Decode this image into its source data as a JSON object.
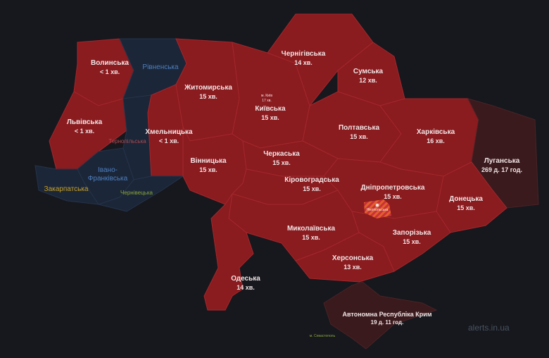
{
  "colors": {
    "background": "#16181d",
    "alert": "#8a1b1f",
    "no_alert": "#1b2638",
    "long_alert": "#3a1a1d",
    "hromada_alert": "#e2602a"
  },
  "regions": {
    "volynska": {
      "name": "Волинська",
      "time": "< 1 хв.",
      "status": "alert"
    },
    "rivnenska": {
      "name": "Рівненська",
      "status": "ok"
    },
    "lvivska": {
      "name": "Львівська",
      "time": "< 1 хв.",
      "status": "alert"
    },
    "khmelnytska": {
      "name": "Хмельницька",
      "time": "< 1 хв.",
      "status": "alert"
    },
    "ternopilska": {
      "name": "Тернопільська",
      "status": "ok"
    },
    "ivano_frankivska": {
      "name": "Івано-Франківська",
      "status": "ok"
    },
    "zakarpatska": {
      "name": "Закарпатська",
      "status": "ok"
    },
    "chernivetska": {
      "name": "Чернівецька",
      "status": "ok"
    },
    "zhytomyrska": {
      "name": "Житомирська",
      "time": "15 хв.",
      "status": "alert"
    },
    "vinnytska": {
      "name": "Вінницька",
      "time": "15 хв.",
      "status": "alert"
    },
    "kyivska": {
      "name": "Київська",
      "time": "15 хв.",
      "status": "alert"
    },
    "kyiv_city": {
      "name": "м. Київ",
      "time": "17 хв.",
      "status": "alert"
    },
    "chernihivska": {
      "name": "Чернігівська",
      "time": "14 хв.",
      "status": "alert"
    },
    "sumska": {
      "name": "Сумська",
      "time": "12 хв.",
      "status": "alert"
    },
    "poltavska": {
      "name": "Полтавська",
      "time": "15 хв.",
      "status": "alert"
    },
    "kharkivska": {
      "name": "Харківська",
      "time": "16 хв.",
      "status": "alert"
    },
    "luhanska": {
      "name": "Луганська",
      "time": "269 д. 17 год.",
      "status": "long"
    },
    "cherkaska": {
      "name": "Черкаська",
      "time": "15 хв.",
      "status": "alert"
    },
    "kirovohradska": {
      "name": "Кіровоградська",
      "time": "15 хв.",
      "status": "alert"
    },
    "dnipropetrovska": {
      "name": "Дніпропетровська",
      "time": "15 хв.",
      "status": "alert"
    },
    "donetska": {
      "name": "Донецька",
      "time": "15 хв.",
      "status": "alert"
    },
    "mykolaivska": {
      "name": "Миколаївська",
      "time": "15 хв.",
      "status": "alert"
    },
    "zaporizka": {
      "name": "Запорізька",
      "time": "15 хв.",
      "status": "alert"
    },
    "khersonska": {
      "name": "Херсонська",
      "time": "13 хв.",
      "status": "alert"
    },
    "odeska": {
      "name": "Одеська",
      "time": "14 хв.",
      "status": "alert"
    },
    "crimea": {
      "name": "Автономна Республіка Крим",
      "time": "19 д. 11 год.",
      "status": "long"
    },
    "sevastopol": {
      "name": "м. Севастополь",
      "status": "ok"
    }
  },
  "hromada": {
    "name": "Нікопольська",
    "icon": "artillery-icon"
  },
  "watermark": "alerts.in.ua"
}
